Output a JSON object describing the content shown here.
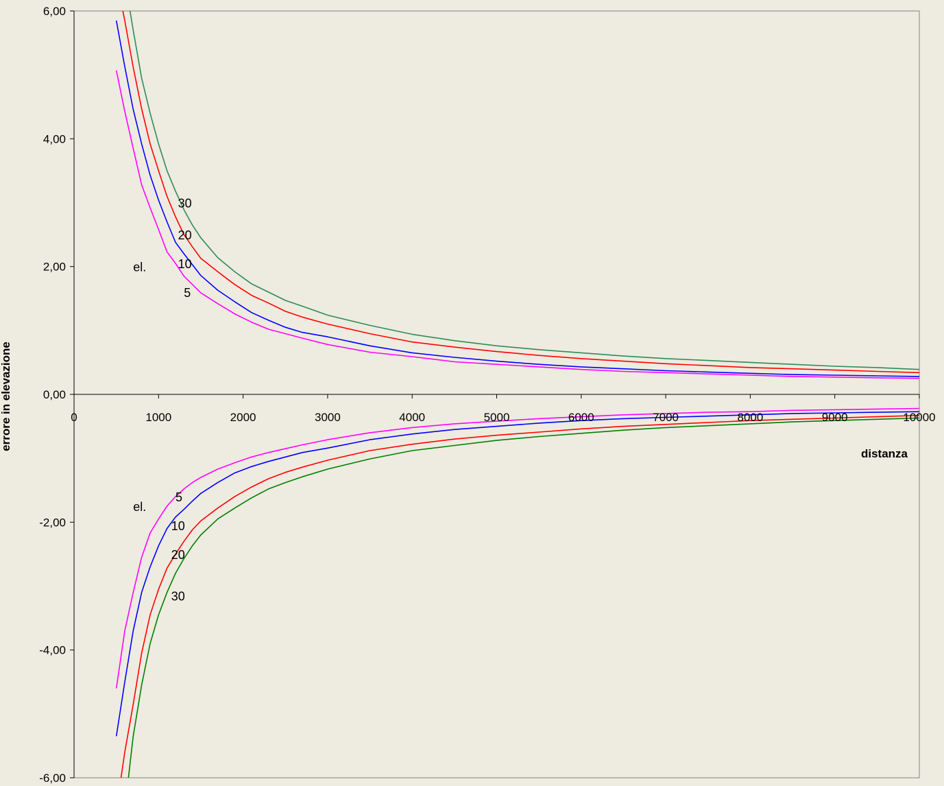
{
  "chart_data": {
    "type": "line",
    "xlabel": "distanza",
    "ylabel": "errore in elevazione",
    "xlim": [
      0,
      10000
    ],
    "ylim": [
      -6,
      6
    ],
    "x_ticks": [
      "0",
      "1000",
      "2000",
      "3000",
      "4000",
      "5000",
      "6000",
      "7000",
      "8000",
      "9000",
      "10000"
    ],
    "y_ticks": [
      {
        "value": 6,
        "label": "6,00"
      },
      {
        "value": 4,
        "label": "4,00"
      },
      {
        "value": 2,
        "label": "2,00"
      },
      {
        "value": 0,
        "label": "0,00"
      },
      {
        "value": -2,
        "label": "-2,00"
      },
      {
        "value": -4,
        "label": "-4,00"
      },
      {
        "value": -6,
        "label": "-6,00"
      }
    ],
    "grid": false,
    "x": [
      500,
      600,
      700,
      800,
      900,
      1000,
      1100,
      1200,
      1300,
      1400,
      1500,
      1700,
      1900,
      2100,
      2300,
      2500,
      2700,
      3000,
      3500,
      4000,
      4500,
      5000,
      5500,
      6000,
      6500,
      7000,
      7500,
      8000,
      8500,
      9000,
      9500,
      10000
    ],
    "series": [
      {
        "name": "5",
        "color": "#FF00FF",
        "values": [
          5.07,
          4.43,
          3.85,
          3.28,
          2.92,
          2.58,
          2.23,
          2.05,
          1.85,
          1.72,
          1.59,
          1.42,
          1.26,
          1.13,
          1.02,
          0.95,
          0.88,
          0.78,
          0.66,
          0.59,
          0.51,
          0.47,
          0.43,
          0.39,
          0.36,
          0.34,
          0.32,
          0.3,
          0.28,
          0.27,
          0.26,
          0.25
        ]
      },
      {
        "name": "10",
        "color": "#0000FF",
        "values": [
          5.85,
          5.13,
          4.46,
          3.92,
          3.43,
          3.04,
          2.7,
          2.38,
          2.2,
          2.03,
          1.86,
          1.63,
          1.45,
          1.28,
          1.16,
          1.05,
          0.97,
          0.9,
          0.76,
          0.65,
          0.58,
          0.52,
          0.47,
          0.43,
          0.4,
          0.37,
          0.35,
          0.33,
          0.31,
          0.3,
          0.29,
          0.28
        ]
      },
      {
        "name": "20",
        "color": "#FF0000",
        "values": [
          6.5,
          5.85,
          5.12,
          4.47,
          3.92,
          3.5,
          3.1,
          2.78,
          2.5,
          2.31,
          2.13,
          1.92,
          1.72,
          1.55,
          1.43,
          1.3,
          1.21,
          1.1,
          0.95,
          0.82,
          0.74,
          0.67,
          0.61,
          0.56,
          0.52,
          0.48,
          0.45,
          0.42,
          0.4,
          0.38,
          0.36,
          0.34
        ]
      },
      {
        "name": "30",
        "color": "#2E8B57",
        "values": [
          6.5,
          6.5,
          5.7,
          4.95,
          4.4,
          3.92,
          3.5,
          3.18,
          2.89,
          2.65,
          2.45,
          2.14,
          1.92,
          1.73,
          1.6,
          1.47,
          1.38,
          1.24,
          1.08,
          0.94,
          0.84,
          0.76,
          0.7,
          0.65,
          0.6,
          0.56,
          0.53,
          0.5,
          0.47,
          0.44,
          0.42,
          0.39
        ]
      },
      {
        "name": "5",
        "color": "#FF00FF",
        "values": [
          -4.6,
          -3.7,
          -3.1,
          -2.55,
          -2.17,
          -1.95,
          -1.75,
          -1.6,
          -1.48,
          -1.38,
          -1.3,
          -1.17,
          -1.07,
          -0.98,
          -0.91,
          -0.85,
          -0.79,
          -0.71,
          -0.6,
          -0.52,
          -0.46,
          -0.42,
          -0.38,
          -0.35,
          -0.32,
          -0.3,
          -0.28,
          -0.27,
          -0.25,
          -0.24,
          -0.23,
          -0.22
        ]
      },
      {
        "name": "10",
        "color": "#0000FF",
        "values": [
          -5.35,
          -4.5,
          -3.7,
          -3.1,
          -2.7,
          -2.37,
          -2.1,
          -1.92,
          -1.8,
          -1.67,
          -1.55,
          -1.38,
          -1.23,
          -1.13,
          -1.05,
          -0.98,
          -0.91,
          -0.84,
          -0.71,
          -0.62,
          -0.55,
          -0.5,
          -0.45,
          -0.41,
          -0.38,
          -0.36,
          -0.34,
          -0.32,
          -0.3,
          -0.29,
          -0.28,
          -0.27
        ]
      },
      {
        "name": "20",
        "color": "#FF0000",
        "values": [
          -6.5,
          -5.6,
          -4.85,
          -4.05,
          -3.45,
          -3.05,
          -2.72,
          -2.5,
          -2.3,
          -2.12,
          -1.98,
          -1.78,
          -1.6,
          -1.45,
          -1.32,
          -1.22,
          -1.14,
          -1.03,
          -0.88,
          -0.78,
          -0.7,
          -0.64,
          -0.59,
          -0.54,
          -0.5,
          -0.47,
          -0.44,
          -0.41,
          -0.39,
          -0.37,
          -0.35,
          -0.33
        ]
      },
      {
        "name": "30",
        "color": "#008000",
        "values": [
          -6.5,
          -6.5,
          -5.35,
          -4.55,
          -3.9,
          -3.45,
          -3.1,
          -2.8,
          -2.57,
          -2.37,
          -2.2,
          -1.95,
          -1.78,
          -1.62,
          -1.48,
          -1.38,
          -1.29,
          -1.17,
          -1.01,
          -0.88,
          -0.8,
          -0.72,
          -0.66,
          -0.61,
          -0.56,
          -0.52,
          -0.49,
          -0.46,
          -0.43,
          -0.41,
          -0.39,
          -0.37
        ]
      }
    ],
    "annotations": [
      {
        "text": "30",
        "x": 1230,
        "y": 3.0
      },
      {
        "text": "20",
        "x": 1230,
        "y": 2.5
      },
      {
        "text": "el.",
        "x": 700,
        "y": 2.0
      },
      {
        "text": "10",
        "x": 1230,
        "y": 2.05
      },
      {
        "text": "5",
        "x": 1300,
        "y": 1.6
      },
      {
        "text": "5",
        "x": 1200,
        "y": -1.6
      },
      {
        "text": "el.",
        "x": 700,
        "y": -1.75
      },
      {
        "text": "10",
        "x": 1150,
        "y": -2.05
      },
      {
        "text": "20",
        "x": 1150,
        "y": -2.5
      },
      {
        "text": "30",
        "x": 1150,
        "y": -3.15
      }
    ]
  }
}
